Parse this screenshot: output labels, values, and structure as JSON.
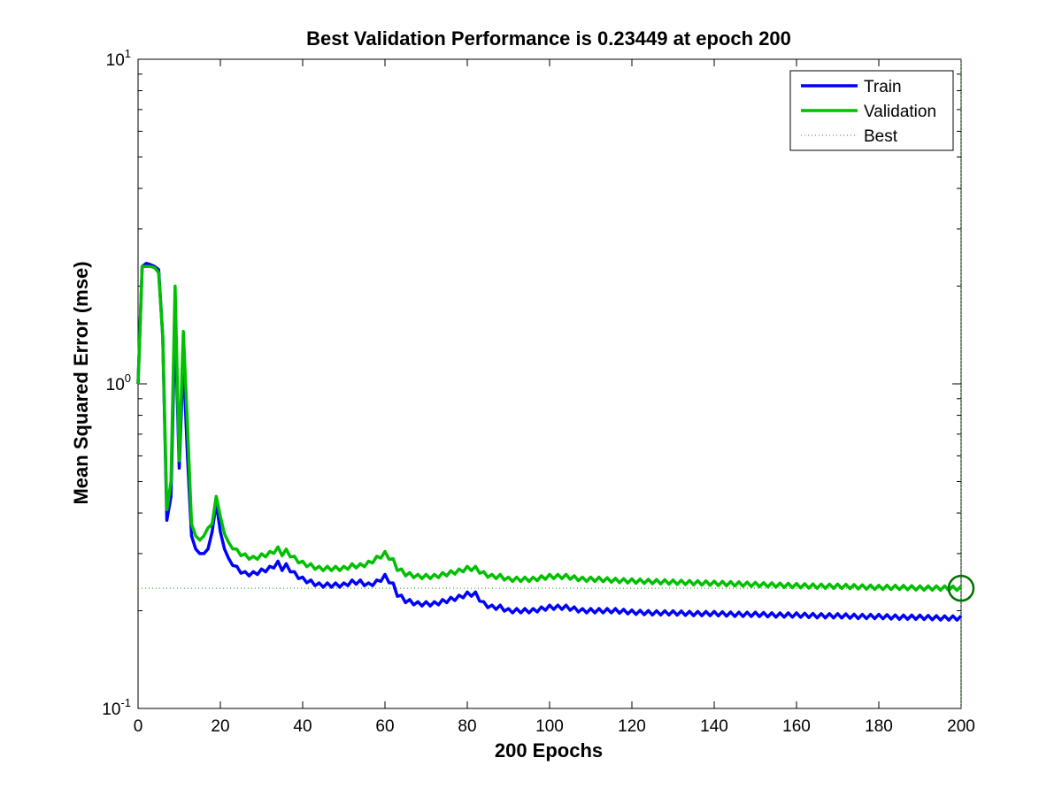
{
  "chart_data": {
    "type": "line",
    "title": "Best Validation Performance is 0.23449 at epoch 200",
    "xlabel": "200 Epochs",
    "ylabel": "Mean Squared Error  (mse)",
    "xlim": [
      0,
      200
    ],
    "ylim": [
      0.1,
      10
    ],
    "y_scale": "log",
    "grid": false,
    "legend_position": "top-right",
    "x_ticks": [
      0,
      20,
      40,
      60,
      80,
      100,
      120,
      140,
      160,
      180,
      200
    ],
    "y_ticks": [
      {
        "value": 0.1,
        "base": "10",
        "exp": "-1"
      },
      {
        "value": 1,
        "base": "10",
        "exp": "0"
      },
      {
        "value": 10,
        "base": "10",
        "exp": "1"
      }
    ],
    "series": [
      {
        "name": "Train",
        "color": "#0000ff",
        "style": "solid",
        "x": [
          0,
          1,
          2,
          3,
          4,
          5,
          6,
          7,
          8,
          9,
          10,
          11,
          12,
          13,
          14,
          15,
          16,
          17,
          18,
          19,
          20,
          21,
          22,
          24,
          26,
          28,
          30,
          32,
          34,
          35,
          36,
          38,
          40,
          42,
          44,
          46,
          48,
          50,
          52,
          54,
          56,
          58,
          60,
          62,
          63,
          65,
          68,
          70,
          72,
          75,
          78,
          80,
          82,
          84,
          86,
          88,
          90,
          93,
          96,
          100,
          104,
          108,
          112,
          116,
          120,
          125,
          130,
          135,
          140,
          145,
          150,
          155,
          160,
          165,
          170,
          175,
          180,
          185,
          190,
          195,
          200
        ],
        "y": [
          1.0,
          2.3,
          2.35,
          2.33,
          2.3,
          2.25,
          1.4,
          0.38,
          0.45,
          1.6,
          0.55,
          1.2,
          0.6,
          0.34,
          0.31,
          0.3,
          0.3,
          0.31,
          0.35,
          0.43,
          0.35,
          0.31,
          0.29,
          0.27,
          0.26,
          0.26,
          0.265,
          0.27,
          0.28,
          0.27,
          0.275,
          0.26,
          0.25,
          0.245,
          0.24,
          0.24,
          0.24,
          0.24,
          0.245,
          0.245,
          0.24,
          0.245,
          0.255,
          0.24,
          0.225,
          0.215,
          0.21,
          0.21,
          0.21,
          0.215,
          0.22,
          0.225,
          0.225,
          0.21,
          0.205,
          0.205,
          0.2,
          0.2,
          0.2,
          0.205,
          0.205,
          0.2,
          0.2,
          0.2,
          0.198,
          0.197,
          0.197,
          0.196,
          0.196,
          0.195,
          0.195,
          0.194,
          0.194,
          0.193,
          0.193,
          0.192,
          0.192,
          0.191,
          0.191,
          0.19,
          0.19
        ]
      },
      {
        "name": "Validation",
        "color": "#00c000",
        "style": "solid",
        "x": [
          0,
          1,
          2,
          3,
          4,
          5,
          6,
          7,
          8,
          9,
          10,
          11,
          12,
          13,
          14,
          15,
          16,
          17,
          18,
          19,
          20,
          21,
          22,
          24,
          26,
          28,
          30,
          32,
          34,
          35,
          36,
          38,
          40,
          42,
          44,
          46,
          48,
          50,
          52,
          54,
          56,
          58,
          60,
          62,
          63,
          65,
          68,
          70,
          72,
          75,
          78,
          80,
          82,
          84,
          86,
          88,
          90,
          93,
          96,
          100,
          104,
          108,
          112,
          116,
          120,
          125,
          130,
          135,
          140,
          145,
          150,
          155,
          160,
          165,
          170,
          175,
          180,
          185,
          190,
          195,
          200
        ],
        "y": [
          1.0,
          2.3,
          2.3,
          2.3,
          2.28,
          2.2,
          1.4,
          0.41,
          0.5,
          2.0,
          0.58,
          1.45,
          0.75,
          0.37,
          0.34,
          0.33,
          0.34,
          0.36,
          0.37,
          0.45,
          0.39,
          0.345,
          0.325,
          0.305,
          0.295,
          0.29,
          0.295,
          0.3,
          0.31,
          0.3,
          0.305,
          0.29,
          0.28,
          0.275,
          0.27,
          0.27,
          0.27,
          0.27,
          0.275,
          0.275,
          0.28,
          0.29,
          0.3,
          0.285,
          0.27,
          0.26,
          0.255,
          0.255,
          0.255,
          0.26,
          0.265,
          0.27,
          0.27,
          0.26,
          0.255,
          0.255,
          0.25,
          0.25,
          0.25,
          0.255,
          0.255,
          0.25,
          0.25,
          0.248,
          0.247,
          0.246,
          0.245,
          0.244,
          0.243,
          0.242,
          0.241,
          0.24,
          0.239,
          0.238,
          0.238,
          0.237,
          0.236,
          0.236,
          0.235,
          0.235,
          0.23449
        ]
      }
    ],
    "best": {
      "name": "Best",
      "epoch": 200,
      "value": 0.23449,
      "color": "#00a000",
      "style": "dotted"
    }
  }
}
